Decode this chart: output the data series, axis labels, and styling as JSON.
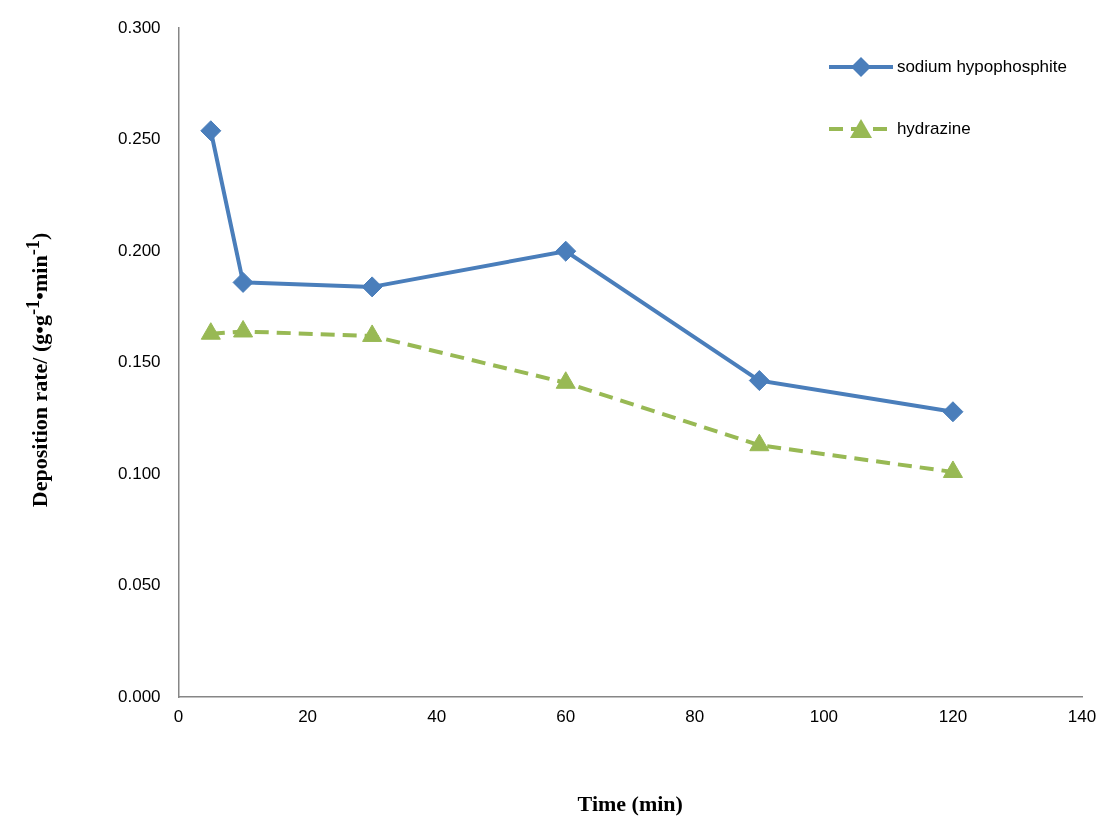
{
  "chart_data": {
    "type": "line",
    "xlabel": "Time (min)",
    "ylabel": "Deposition rate/ (g•g$^{-1}$•min$^{-1}$)",
    "x": [
      5,
      10,
      30,
      60,
      90,
      120
    ],
    "series": [
      {
        "name": "sodium hypophosphite",
        "color": "#4a7ebb",
        "marker": "diamond",
        "line_style": "solid",
        "values": [
          0.254,
          0.186,
          0.184,
          0.2,
          0.142,
          0.128
        ]
      },
      {
        "name": "hydrazine",
        "color": "#98b954",
        "marker": "triangle",
        "line_style": "dashed",
        "values": [
          0.163,
          0.164,
          0.162,
          0.141,
          0.113,
          0.101
        ]
      }
    ],
    "xlim": [
      0,
      140
    ],
    "xticks": [
      0,
      20,
      40,
      60,
      80,
      100,
      120,
      140
    ],
    "ylim": [
      0,
      0.3
    ],
    "yticks": [
      {
        "value": 0,
        "label": "0.000"
      },
      {
        "value": 0.05,
        "label": "0.050"
      },
      {
        "value": 0.1,
        "label": "0.100"
      },
      {
        "value": 0.15,
        "label": "0.150"
      },
      {
        "value": 0.2,
        "label": "0.200"
      },
      {
        "value": 0.25,
        "label": "0.250"
      },
      {
        "value": 0.3,
        "label": "0.300"
      }
    ],
    "grid": false,
    "legend": "top right"
  }
}
